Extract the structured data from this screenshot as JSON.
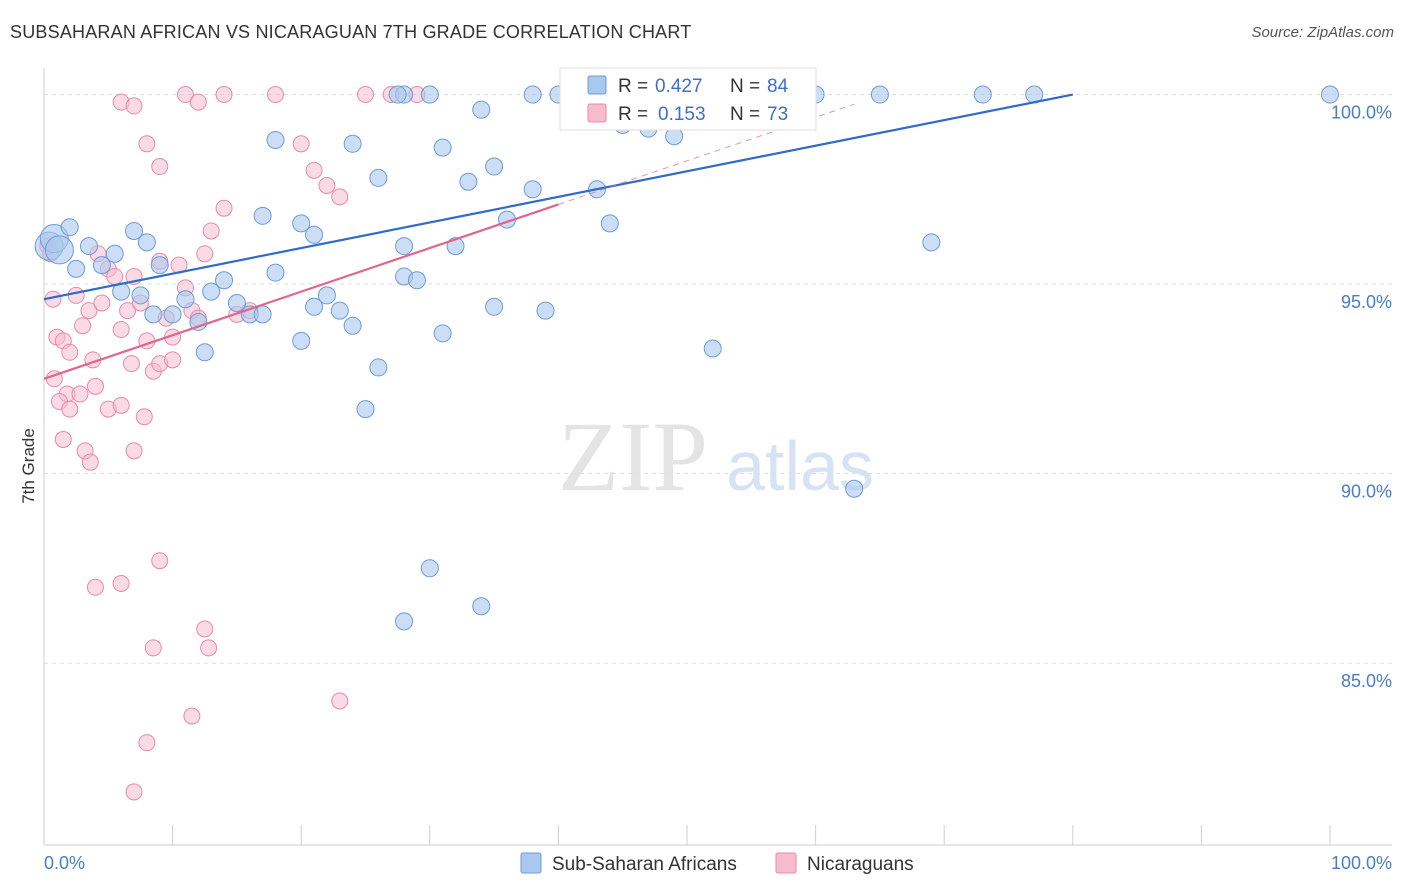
{
  "title": "SUBSAHARAN AFRICAN VS NICARAGUAN 7TH GRADE CORRELATION CHART",
  "source": "Source: ZipAtlas.com",
  "watermark": {
    "zip": "ZIP",
    "atlas": "atlas"
  },
  "colors": {
    "blue_fill": "#aac8ee",
    "blue_stroke": "#6d9bd8",
    "blue_line": "#2f6bc9",
    "pink_fill": "#f6bccd",
    "pink_stroke": "#e98aa8",
    "pink_line": "#e0668e",
    "axis_text": "#4a7cc7",
    "grid": "#dddddd"
  },
  "legend": {
    "r_label": "R =",
    "n_label": "N =",
    "blue": {
      "r": "0.427",
      "n": "84"
    },
    "pink": {
      "r": "0.153",
      "n": "73"
    }
  },
  "chart_data": {
    "type": "scatter",
    "title": "SUBSAHARAN AFRICAN VS NICARAGUAN 7TH GRADE CORRELATION CHART",
    "xlabel": "",
    "ylabel": "7th Grade",
    "xlim": [
      0,
      100
    ],
    "ylim": [
      80.2,
      100.7
    ],
    "x_tick_labels": [
      "0.0%",
      "100.0%"
    ],
    "y_ticks": [
      85,
      90,
      95,
      100
    ],
    "y_tick_labels": [
      "85.0%",
      "90.0%",
      "95.0%",
      "100.0%"
    ],
    "grid": true,
    "legend_position": "top-center",
    "series": [
      {
        "name": "Sub-Saharan Africans",
        "color": "#aac8ee",
        "trend": {
          "x": [
            0,
            80
          ],
          "y": [
            94.6,
            100.0
          ]
        },
        "points": [
          [
            0.4,
            96.0
          ],
          [
            0.8,
            96.2
          ],
          [
            1.2,
            95.9
          ],
          [
            2,
            96.5
          ],
          [
            3.5,
            96.0
          ],
          [
            2.5,
            95.4
          ],
          [
            4.5,
            95.5
          ],
          [
            5.5,
            95.8
          ],
          [
            7,
            96.4
          ],
          [
            8,
            96.1
          ],
          [
            9,
            95.5
          ],
          [
            6,
            94.8
          ],
          [
            7.5,
            94.7
          ],
          [
            8.5,
            94.2
          ],
          [
            10,
            94.2
          ],
          [
            11,
            94.6
          ],
          [
            12,
            94.0
          ],
          [
            13,
            94.8
          ],
          [
            12.5,
            93.2
          ],
          [
            15,
            94.5
          ],
          [
            14,
            95.1
          ],
          [
            16,
            94.2
          ],
          [
            18,
            95.3
          ],
          [
            17,
            94.2
          ],
          [
            20,
            93.5
          ],
          [
            21,
            94.4
          ],
          [
            22,
            94.7
          ],
          [
            23,
            94.3
          ],
          [
            24,
            93.9
          ],
          [
            20,
            96.6
          ],
          [
            21,
            96.3
          ],
          [
            17,
            96.8
          ],
          [
            28,
            96.0
          ],
          [
            28,
            95.2
          ],
          [
            29,
            95.1
          ],
          [
            31,
            93.7
          ],
          [
            32,
            96.0
          ],
          [
            35,
            94.4
          ],
          [
            36,
            96.7
          ],
          [
            39,
            94.3
          ],
          [
            26,
            92.8
          ],
          [
            25,
            91.7
          ],
          [
            24,
            98.7
          ],
          [
            18,
            98.8
          ],
          [
            26,
            97.8
          ],
          [
            31,
            98.6
          ],
          [
            33,
            97.7
          ],
          [
            38,
            97.5
          ],
          [
            43,
            97.5
          ],
          [
            44,
            96.6
          ],
          [
            34,
            99.6
          ],
          [
            40,
            100
          ],
          [
            41,
            100
          ],
          [
            42,
            100
          ],
          [
            43,
            100
          ],
          [
            45,
            100
          ],
          [
            28,
            100
          ],
          [
            30,
            100
          ],
          [
            38,
            100
          ],
          [
            42,
            99.8
          ],
          [
            50,
            100
          ],
          [
            55,
            100
          ],
          [
            59,
            100
          ],
          [
            60,
            100
          ],
          [
            65,
            100
          ],
          [
            73,
            100
          ],
          [
            77,
            100
          ],
          [
            100,
            100
          ],
          [
            69,
            96.1
          ],
          [
            47,
            100
          ],
          [
            41,
            100
          ],
          [
            27.5,
            100
          ],
          [
            52,
            93.3
          ],
          [
            63,
            89.6
          ],
          [
            34,
            86.5
          ],
          [
            30,
            87.5
          ],
          [
            28,
            86.1
          ],
          [
            46,
            100
          ],
          [
            57,
            100
          ],
          [
            54,
            100
          ],
          [
            47,
            99.1
          ],
          [
            49,
            98.9
          ],
          [
            35,
            98.1
          ],
          [
            45,
            99.2
          ]
        ]
      },
      {
        "name": "Nicaraguans",
        "color": "#f6bccd",
        "trend": {
          "x": [
            0,
            40
          ],
          "y": [
            92.5,
            97.1
          ]
        },
        "points": [
          [
            0.3,
            96.0
          ],
          [
            0.5,
            95.8
          ],
          [
            0.7,
            94.6
          ],
          [
            1,
            93.6
          ],
          [
            1.5,
            93.5
          ],
          [
            1.8,
            92.1
          ],
          [
            2,
            93.2
          ],
          [
            2.5,
            94.7
          ],
          [
            3,
            93.9
          ],
          [
            3.5,
            94.3
          ],
          [
            3.8,
            93.0
          ],
          [
            4,
            92.3
          ],
          [
            4.5,
            94.5
          ],
          [
            4.2,
            95.8
          ],
          [
            5,
            95.4
          ],
          [
            5.5,
            95.2
          ],
          [
            6,
            93.8
          ],
          [
            6.5,
            94.3
          ],
          [
            6.8,
            92.9
          ],
          [
            7,
            95.2
          ],
          [
            7.5,
            94.5
          ],
          [
            8,
            93.5
          ],
          [
            8.5,
            92.7
          ],
          [
            9,
            95.6
          ],
          [
            9.5,
            94.1
          ],
          [
            10,
            93.6
          ],
          [
            10.5,
            95.5
          ],
          [
            11,
            94.9
          ],
          [
            11.5,
            94.3
          ],
          [
            12,
            94.1
          ],
          [
            12.5,
            95.8
          ],
          [
            13,
            96.4
          ],
          [
            14,
            97.0
          ],
          [
            15,
            94.2
          ],
          [
            16,
            94.3
          ],
          [
            0.8,
            92.5
          ],
          [
            1.2,
            91.9
          ],
          [
            2,
            91.7
          ],
          [
            2.8,
            92.1
          ],
          [
            3.2,
            90.6
          ],
          [
            3.6,
            90.3
          ],
          [
            5,
            91.7
          ],
          [
            6,
            91.8
          ],
          [
            7,
            90.6
          ],
          [
            7.8,
            91.5
          ],
          [
            1.5,
            90.9
          ],
          [
            9,
            92.9
          ],
          [
            10,
            93.0
          ],
          [
            20,
            98.7
          ],
          [
            21,
            98.0
          ],
          [
            22,
            97.6
          ],
          [
            23,
            97.3
          ],
          [
            6,
            99.8
          ],
          [
            7,
            99.7
          ],
          [
            8,
            98.7
          ],
          [
            9,
            98.1
          ],
          [
            11,
            100
          ],
          [
            12,
            99.8
          ],
          [
            14,
            100
          ],
          [
            18,
            100
          ],
          [
            25,
            100
          ],
          [
            27,
            100
          ],
          [
            29,
            100
          ],
          [
            9,
            87.7
          ],
          [
            4,
            87.0
          ],
          [
            6,
            87.1
          ],
          [
            8.5,
            85.4
          ],
          [
            12.5,
            85.9
          ],
          [
            12.8,
            85.4
          ],
          [
            11.5,
            83.6
          ],
          [
            23,
            84.0
          ],
          [
            8,
            82.9
          ],
          [
            7,
            81.6
          ]
        ]
      }
    ]
  },
  "bottom_legend": [
    "Sub-Saharan Africans",
    "Nicaraguans"
  ]
}
